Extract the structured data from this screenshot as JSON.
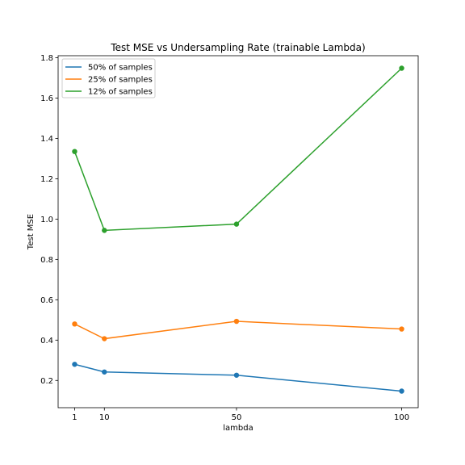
{
  "chart_data": {
    "type": "line",
    "title": "Test MSE vs Undersampling Rate (trainable Lambda)",
    "xlabel": "lambda",
    "ylabel": "Test MSE",
    "x": [
      1,
      10,
      50,
      100
    ],
    "xticks": [
      "1",
      "10",
      "50",
      "100"
    ],
    "xlim": [
      -4,
      105
    ],
    "ylim": [
      0.065,
      1.81
    ],
    "yticks": [
      "0.2",
      "0.4",
      "0.6",
      "0.8",
      "1.0",
      "1.2",
      "1.4",
      "1.6",
      "1.8"
    ],
    "grid": false,
    "legend_position": "top-left",
    "series": [
      {
        "name": "50% of samples",
        "color": "#1f77b4",
        "values": [
          0.28,
          0.242,
          0.226,
          0.147
        ]
      },
      {
        "name": "25% of samples",
        "color": "#ff7f0e",
        "values": [
          0.48,
          0.407,
          0.493,
          0.455
        ]
      },
      {
        "name": "12% of samples",
        "color": "#2ca02c",
        "values": [
          1.335,
          0.944,
          0.975,
          1.748
        ]
      }
    ]
  }
}
